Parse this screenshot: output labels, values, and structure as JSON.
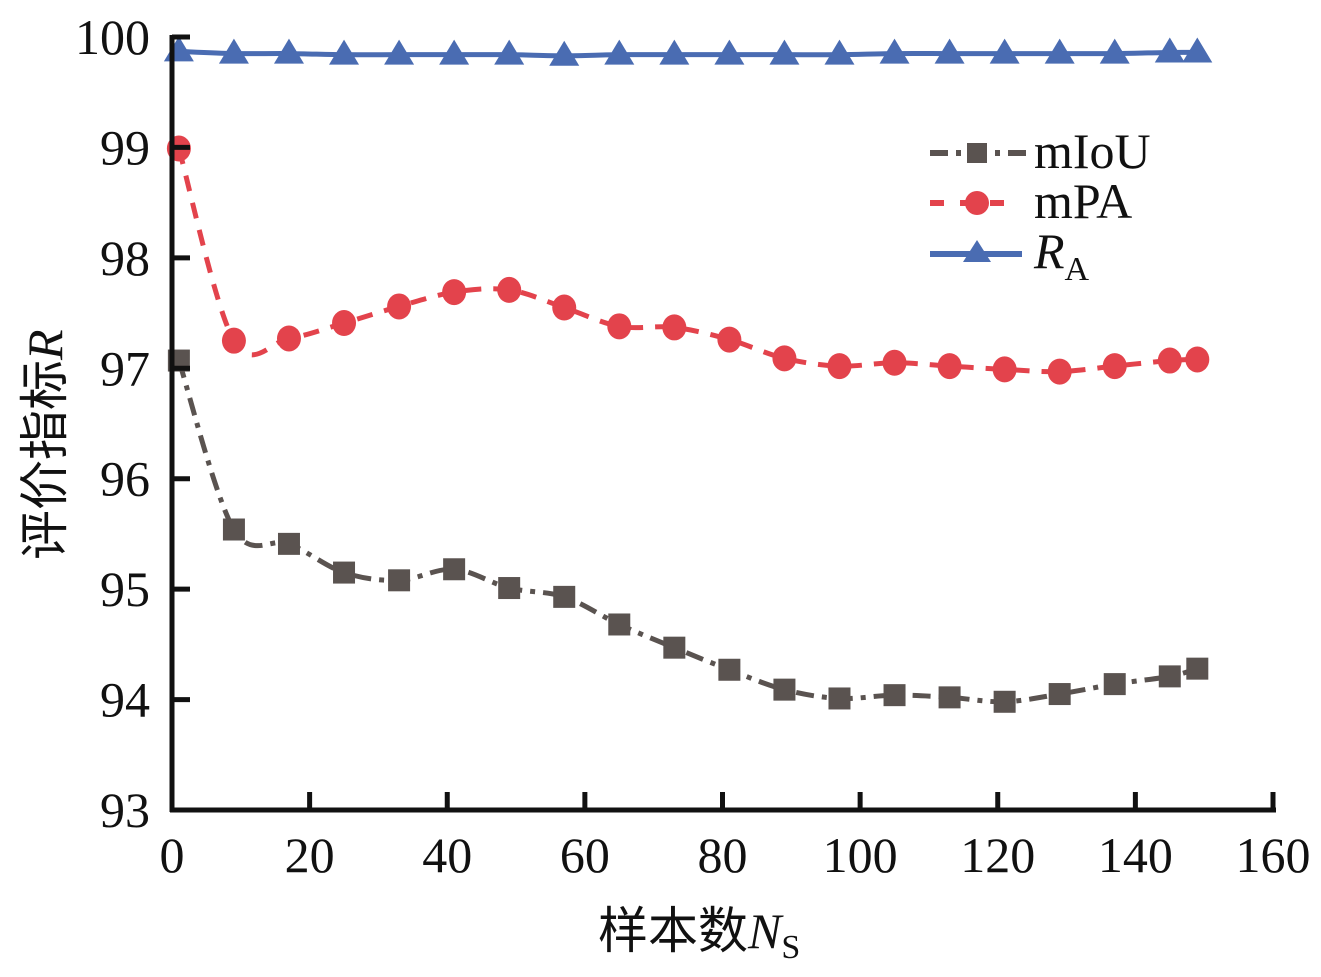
{
  "chart_data": {
    "type": "line",
    "title": "",
    "xlabel": "样本数",
    "xlabel_var": "N",
    "xlabel_sub": "S",
    "ylabel": "评价指标",
    "ylabel_var": "R",
    "xlim": [
      0,
      160
    ],
    "ylim": [
      93,
      100
    ],
    "xticks": [
      "0",
      "20",
      "40",
      "60",
      "80",
      "100",
      "120",
      "140",
      "160"
    ],
    "yticks": [
      "93",
      "94",
      "95",
      "96",
      "97",
      "98",
      "99",
      "100"
    ],
    "grid": false,
    "legend_position": "top-right",
    "x": [
      1,
      9,
      17,
      25,
      33,
      41,
      49,
      57,
      65,
      73,
      81,
      89,
      97,
      105,
      113,
      121,
      129,
      137,
      145,
      149
    ],
    "series": [
      {
        "name": "mIoU",
        "label": "mIoU",
        "color": "#5a5350",
        "marker": "square",
        "linestyle": "dashdot",
        "values": [
          97.07,
          95.54,
          95.41,
          95.15,
          95.08,
          95.18,
          95.01,
          94.93,
          94.68,
          94.47,
          94.27,
          94.09,
          94.01,
          94.04,
          94.02,
          93.98,
          94.05,
          94.14,
          94.21,
          94.28
        ]
      },
      {
        "name": "mPA",
        "label": "mPA",
        "color": "#e3434c",
        "marker": "circle",
        "linestyle": "dashed",
        "values": [
          98.99,
          97.25,
          97.27,
          97.41,
          97.56,
          97.69,
          97.71,
          97.55,
          97.38,
          97.37,
          97.26,
          97.09,
          97.02,
          97.05,
          97.02,
          96.99,
          96.97,
          97.02,
          97.07,
          97.08
        ]
      },
      {
        "name": "RA",
        "label": "R",
        "label_sub": "A",
        "color": "#4a6cb2",
        "marker": "triangle",
        "linestyle": "solid",
        "values": [
          99.87,
          99.85,
          99.85,
          99.84,
          99.84,
          99.84,
          99.84,
          99.83,
          99.84,
          99.84,
          99.84,
          99.84,
          99.84,
          99.85,
          99.85,
          99.85,
          99.85,
          99.85,
          99.86,
          99.86
        ]
      }
    ]
  }
}
